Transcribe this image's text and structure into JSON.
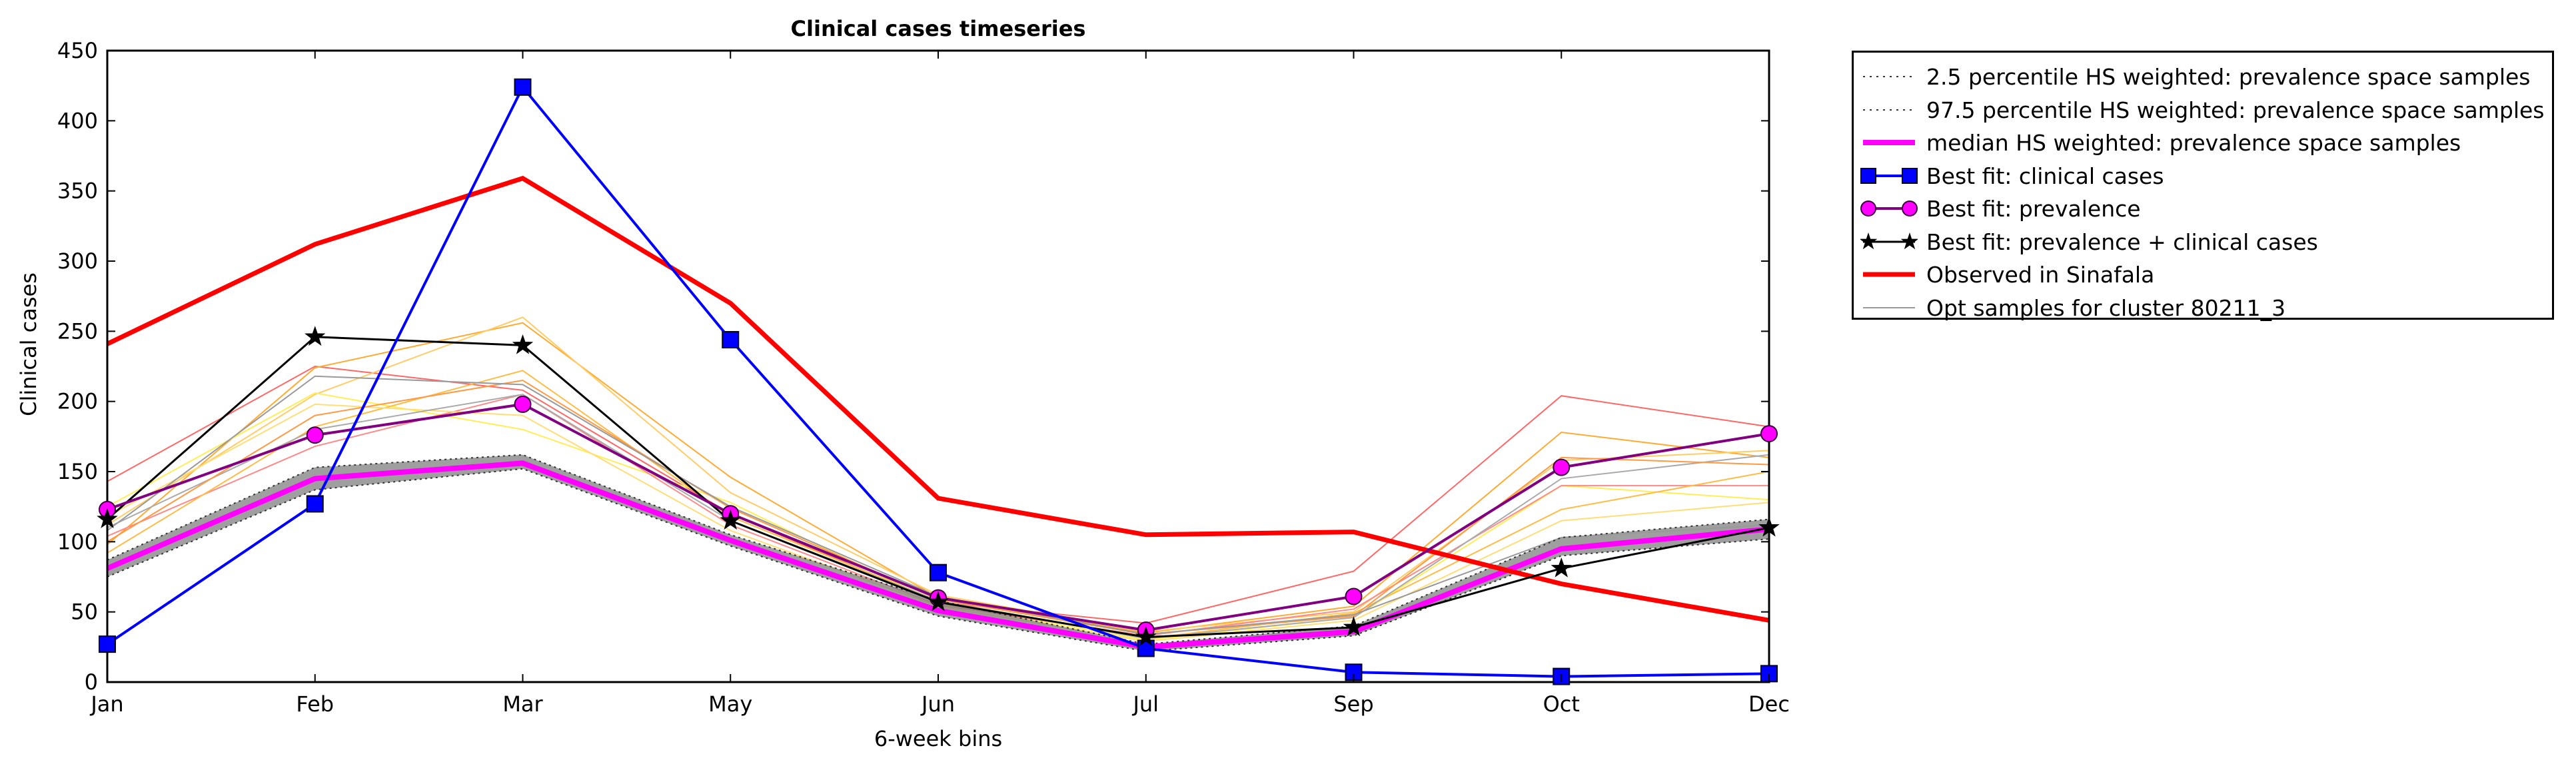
{
  "chart_data": {
    "type": "line",
    "title": "Clinical cases timeseries",
    "xlabel": "6-week bins",
    "ylabel": "Clinical cases",
    "categories": [
      "Jan",
      "Feb",
      "Mar",
      "May",
      "Jun",
      "Jul",
      "Sep",
      "Oct",
      "Dec"
    ],
    "ylim": [
      0,
      450
    ],
    "yticks": [
      "0",
      "50",
      "100",
      "150",
      "200",
      "250",
      "300",
      "350",
      "400",
      "450"
    ],
    "grid": false,
    "legend_position": "outside top-right",
    "series": [
      {
        "name": "2.5 percentile HS weighted: prevalence space samples",
        "color": "#444444",
        "style": "dotted",
        "values": [
          75,
          137,
          152,
          97,
          47,
          22,
          33,
          90,
          102
        ]
      },
      {
        "name": "97.5 percentile HS weighted: prevalence space samples",
        "color": "#444444",
        "style": "dotted",
        "values": [
          87,
          153,
          162,
          105,
          58,
          27,
          40,
          103,
          116
        ]
      },
      {
        "name": "median HS weighted: prevalence space samples",
        "color": "#ff00ff",
        "style": "solid",
        "values": [
          81,
          145,
          156,
          101,
          51,
          25,
          36,
          95,
          109
        ]
      },
      {
        "name": "Best fit: clinical cases",
        "color": "#0000ff",
        "marker": "square",
        "values": [
          27,
          127,
          424,
          244,
          78,
          24,
          7,
          4,
          6
        ]
      },
      {
        "name": "Best fit: prevalence",
        "color": "#800080",
        "marker": "circle",
        "marker_color": "#ff00ff",
        "values": [
          123,
          176,
          198,
          120,
          60,
          37,
          61,
          153,
          177
        ]
      },
      {
        "name": "Best fit: prevalence + clinical cases",
        "color": "#000000",
        "marker": "star",
        "values": [
          116,
          246,
          240,
          115,
          57,
          32,
          39,
          81,
          110
        ]
      },
      {
        "name": "Observed in Sinafala",
        "color": "#ff0000",
        "style": "thick",
        "values": [
          241,
          312,
          359,
          270,
          131,
          105,
          107,
          70,
          44
        ]
      },
      {
        "name": "Opt samples for cluster 80211_3",
        "color": "#999999",
        "style": "thin",
        "values": [
          108,
          218,
          212,
          125,
          61,
          34,
          48,
          103,
          112
        ]
      }
    ],
    "sample_lines": [
      {
        "color": "#ff6666",
        "values": [
          143,
          225,
          208,
          120,
          57,
          42,
          79,
          204,
          182
        ]
      },
      {
        "color": "#ffaa33",
        "values": [
          98,
          224,
          256,
          146,
          60,
          35,
          54,
          178,
          160
        ]
      },
      {
        "color": "#ffcc66",
        "values": [
          112,
          205,
          260,
          135,
          62,
          36,
          50,
          158,
          165
        ]
      },
      {
        "color": "#ffee55",
        "values": [
          125,
          206,
          180,
          128,
          56,
          30,
          46,
          140,
          130
        ]
      },
      {
        "color": "#ff8888",
        "values": [
          104,
          168,
          205,
          112,
          55,
          33,
          52,
          140,
          140
        ]
      },
      {
        "color": "#ffbb44",
        "values": [
          92,
          182,
          222,
          118,
          58,
          31,
          49,
          123,
          150
        ]
      },
      {
        "color": "#ffdd77",
        "values": [
          118,
          198,
          190,
          108,
          54,
          29,
          44,
          115,
          128
        ]
      },
      {
        "color": "#aaaaaa",
        "values": [
          110,
          180,
          205,
          115,
          58,
          31,
          46,
          145,
          162
        ]
      },
      {
        "color": "#ff9944",
        "values": [
          100,
          190,
          215,
          124,
          59,
          34,
          47,
          160,
          155
        ]
      }
    ]
  }
}
